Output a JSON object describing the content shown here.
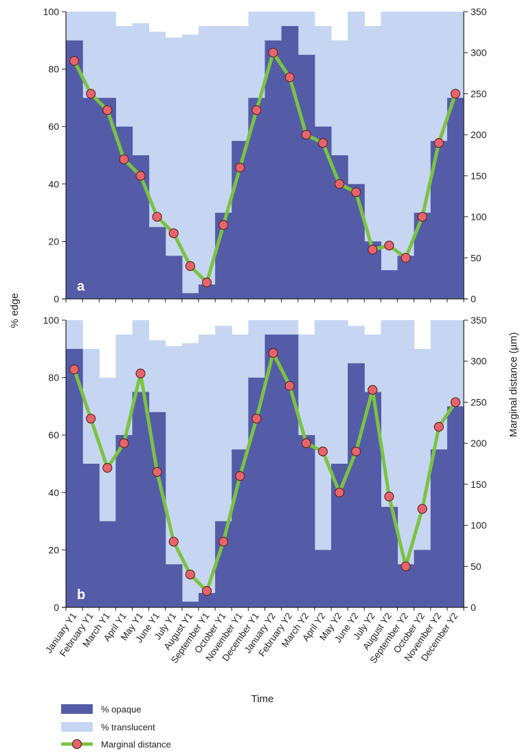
{
  "chart_data": {
    "type": "bar",
    "categories": [
      "January Y1",
      "February Y1",
      "March Y1",
      "April Y1",
      "May Y1",
      "June Y1",
      "July Y1",
      "August Y1",
      "September Y1",
      "October Y1",
      "November Y1",
      "December Y1",
      "January Y2",
      "February Y2",
      "March Y2",
      "April Y2",
      "May Y2",
      "June Y2",
      "July Y2",
      "August Y2",
      "September Y2",
      "October Y2",
      "November Y2",
      "December Y2"
    ],
    "xlabel": "Time",
    "ylabel": "% edge",
    "y2label": "Marginal distance (µm)",
    "ylim": [
      0,
      100
    ],
    "y2lim": [
      0,
      350
    ],
    "yticks": [
      "0",
      "20",
      "40",
      "60",
      "80",
      "100"
    ],
    "y2ticks": [
      "0",
      "50",
      "100",
      "150",
      "200",
      "250",
      "300",
      "350"
    ],
    "legend": [
      {
        "label": "% opaque",
        "color": "#545ca8",
        "kind": "bar"
      },
      {
        "label": "% translucent",
        "color": "#c6d6f2",
        "kind": "bar"
      },
      {
        "label": "Marginal distance",
        "color": "#7cc242",
        "marker": "#e8636c",
        "kind": "line"
      }
    ],
    "legend_position": "bottom-left",
    "panels": [
      {
        "label": "a",
        "series": [
          {
            "name": "% opaque",
            "values": [
              90,
              70,
              70,
              60,
              50,
              25,
              15,
              2,
              5,
              30,
              55,
              70,
              90,
              95,
              85,
              60,
              50,
              40,
              20,
              10,
              15,
              30,
              55,
              70
            ]
          },
          {
            "name": "% translucent",
            "values": [
              10,
              30,
              30,
              35,
              46,
              68,
              76,
              90,
              90,
              65,
              40,
              30,
              10,
              5,
              15,
              35,
              40,
              60,
              75,
              90,
              85,
              70,
              45,
              30
            ]
          },
          {
            "name": "Marginal distance",
            "axis": "right",
            "values": [
              290,
              250,
              230,
              170,
              150,
              100,
              80,
              40,
              20,
              90,
              160,
              230,
              300,
              270,
              200,
              190,
              140,
              130,
              60,
              65,
              50,
              100,
              190,
              250
            ]
          }
        ]
      },
      {
        "label": "b",
        "series": [
          {
            "name": "% opaque",
            "values": [
              90,
              50,
              30,
              60,
              75,
              68,
              15,
              2,
              5,
              30,
              55,
              80,
              95,
              95,
              60,
              20,
              50,
              85,
              75,
              35,
              15,
              20,
              55,
              70
            ]
          },
          {
            "name": "% translucent",
            "values": [
              10,
              40,
              50,
              35,
              25,
              25,
              76,
              90,
              90,
              68,
              40,
              20,
              5,
              5,
              35,
              80,
              50,
              13,
              20,
              65,
              85,
              70,
              45,
              30
            ]
          },
          {
            "name": "Marginal distance",
            "axis": "right",
            "values": [
              290,
              230,
              170,
              200,
              285,
              165,
              80,
              40,
              20,
              80,
              160,
              230,
              310,
              270,
              200,
              190,
              140,
              190,
              265,
              135,
              50,
              120,
              220,
              250
            ]
          }
        ]
      }
    ]
  }
}
